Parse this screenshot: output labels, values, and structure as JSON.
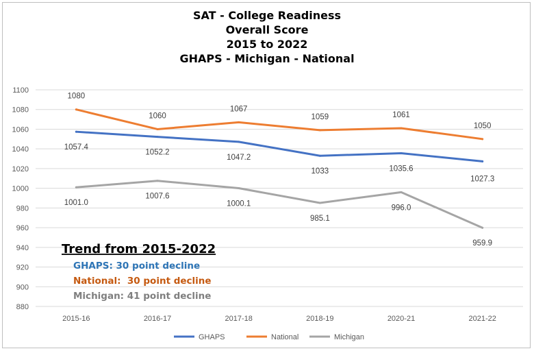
{
  "chart_data": {
    "type": "line",
    "title_lines": [
      "SAT - College Readiness",
      "Overall Score",
      "2015 to 2022",
      "GHAPS - Michigan - National"
    ],
    "categories": [
      "2015-16",
      "2016-17",
      "2017-18",
      "2018-19",
      "2020-21",
      "2021-22"
    ],
    "series": [
      {
        "name": "GHAPS",
        "color": "#4472c4",
        "values": [
          1057.4,
          1052.2,
          1047.2,
          1033,
          1035.6,
          1027.3
        ],
        "labels": [
          "1057.4",
          "1052.2",
          "1047.2",
          "1033",
          "1035.6",
          "1027.3"
        ]
      },
      {
        "name": "National",
        "color": "#ed7d31",
        "values": [
          1080,
          1060,
          1067,
          1059,
          1061,
          1050
        ],
        "labels": [
          "1080",
          "1060",
          "1067",
          "1059",
          "1061",
          "1050"
        ]
      },
      {
        "name": "Michigan",
        "color": "#a5a5a5",
        "values": [
          1001.0,
          1007.6,
          1000.1,
          985.1,
          996.0,
          959.9
        ],
        "labels": [
          "1001.0",
          "1007.6",
          "1000.1",
          "985.1",
          "996.0",
          "959.9"
        ]
      }
    ],
    "ylim": [
      880,
      1100
    ],
    "yticks": [
      "880",
      "900",
      "920",
      "940",
      "960",
      "980",
      "1000",
      "1020",
      "1040",
      "1060",
      "1080",
      "1100"
    ],
    "grid": true,
    "legend_position": "bottom",
    "xlabel": "",
    "ylabel": "",
    "annotation": {
      "heading": "Trend from 2015-2022",
      "lines": [
        {
          "text": "GHAPS: 30 point decline",
          "color": "#2e75b6"
        },
        {
          "text": "National:  30 point decline",
          "color": "#c55a11"
        },
        {
          "text": "Michigan: 41 point decline",
          "color": "#7f7f7f"
        }
      ]
    }
  }
}
